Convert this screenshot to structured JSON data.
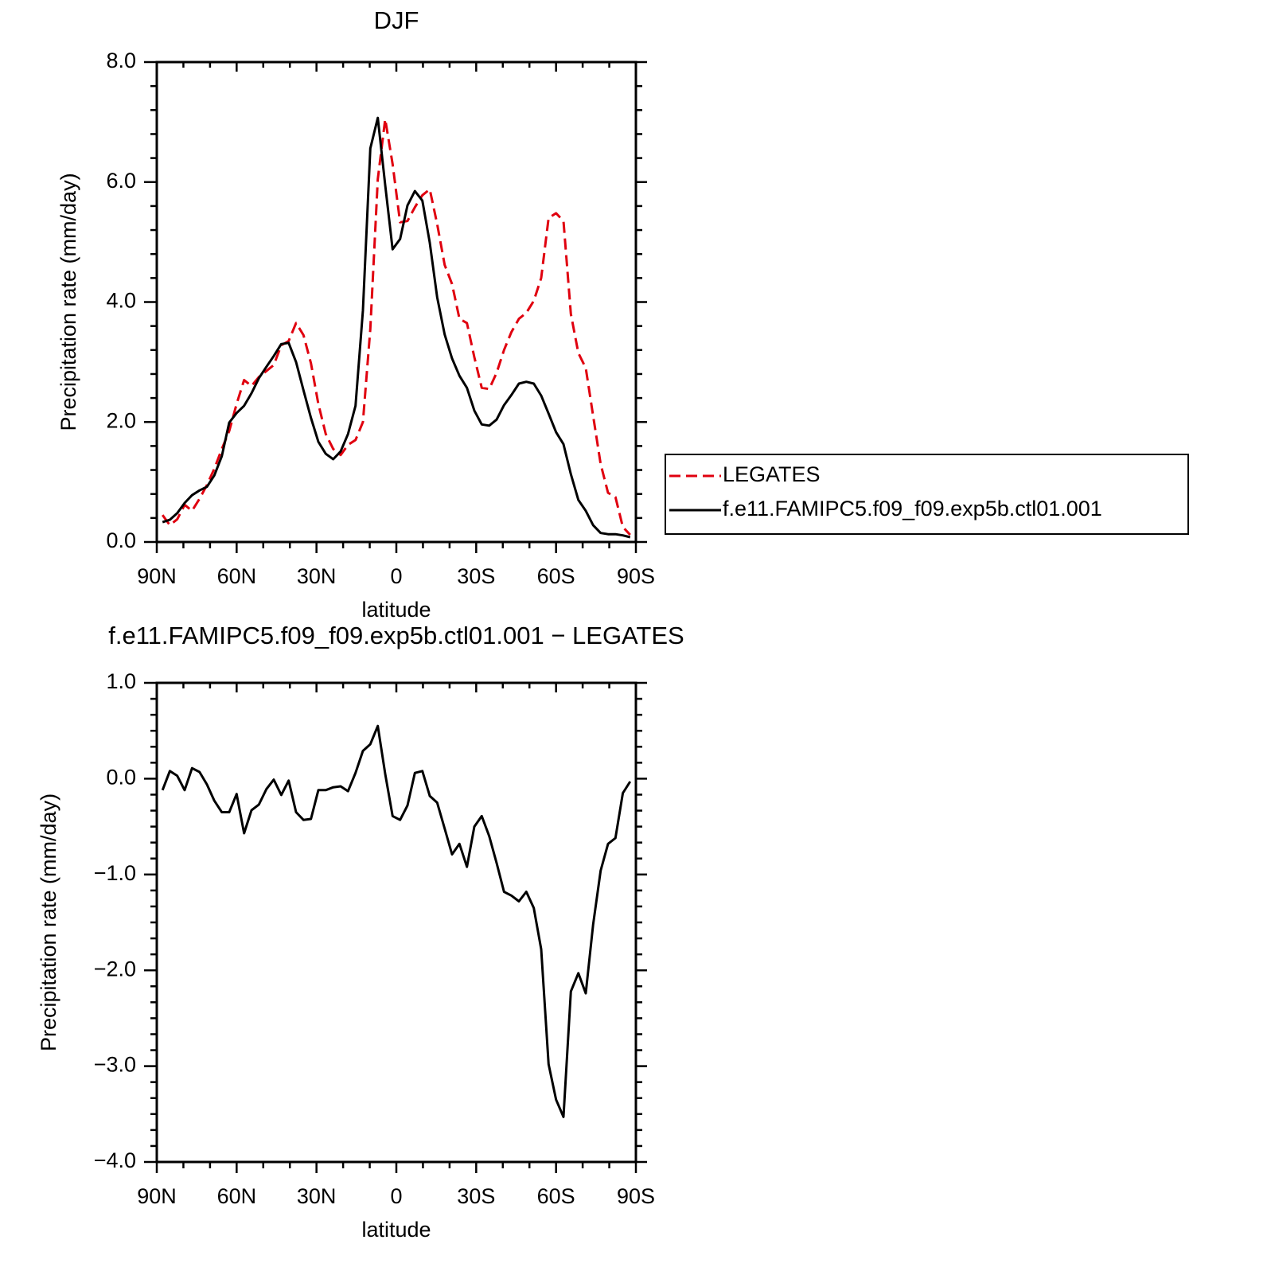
{
  "chart_data": [
    {
      "type": "line",
      "title": "DJF",
      "x_label": "latitude",
      "y_label": "Precipitation rate (mm/day)",
      "x": [
        87.86,
        85.1,
        82.31,
        79.53,
        76.74,
        73.95,
        71.16,
        68.37,
        65.58,
        62.79,
        60.0,
        57.21,
        54.42,
        51.63,
        48.84,
        46.04,
        43.25,
        40.46,
        37.67,
        34.88,
        32.09,
        29.3,
        26.51,
        23.72,
        20.93,
        18.14,
        15.35,
        12.56,
        9.77,
        6.98,
        4.19,
        1.4,
        -1.4,
        -4.19,
        -6.98,
        -9.77,
        -12.56,
        -15.35,
        -18.14,
        -20.93,
        -23.72,
        -26.51,
        -29.3,
        -32.09,
        -34.88,
        -37.67,
        -40.46,
        -43.25,
        -46.04,
        -48.84,
        -51.63,
        -54.42,
        -57.21,
        -60.0,
        -62.79,
        -65.58,
        -68.37,
        -71.16,
        -73.95,
        -76.74,
        -79.53,
        -82.31,
        -85.1,
        -87.86
      ],
      "series": [
        {
          "name": "LEGATES",
          "color": "#e0000f",
          "style": "dashed",
          "values": [
            0.45,
            0.28,
            0.38,
            0.62,
            0.52,
            0.72,
            0.95,
            1.22,
            1.55,
            1.85,
            2.3,
            2.7,
            2.6,
            2.75,
            2.85,
            2.95,
            3.28,
            3.35,
            3.65,
            3.45,
            2.98,
            2.3,
            1.8,
            1.55,
            1.45,
            1.62,
            1.7,
            2.0,
            3.55,
            6.05,
            7.05,
            6.3,
            5.33,
            5.35,
            5.58,
            5.78,
            5.88,
            5.3,
            4.62,
            4.3,
            3.72,
            3.65,
            3.08,
            2.57,
            2.55,
            2.82,
            3.2,
            3.5,
            3.72,
            3.82,
            4.02,
            4.4,
            5.4,
            5.48,
            5.35,
            3.8,
            3.15,
            2.9,
            2.1,
            1.3,
            0.82,
            0.75,
            0.25,
            0.12
          ]
        },
        {
          "name": "f.e11.FAMIPC5.f09_f09.exp5b.ctl01.001",
          "color": "#000000",
          "style": "solid",
          "values": [
            0.33,
            0.37,
            0.48,
            0.65,
            0.78,
            0.86,
            0.92,
            1.11,
            1.43,
            1.99,
            2.15,
            2.27,
            2.48,
            2.73,
            2.92,
            3.1,
            3.3,
            3.32,
            3.0,
            2.53,
            2.07,
            1.67,
            1.47,
            1.38,
            1.51,
            1.8,
            2.27,
            3.86,
            6.56,
            7.07,
            5.95,
            4.88,
            5.05,
            5.61,
            5.85,
            5.69,
            4.99,
            4.08,
            3.46,
            3.06,
            2.77,
            2.57,
            2.19,
            1.96,
            1.94,
            2.04,
            2.28,
            2.45,
            2.64,
            2.67,
            2.64,
            2.44,
            2.14,
            1.83,
            1.63,
            1.13,
            0.7,
            0.52,
            0.28,
            0.15,
            0.13,
            0.13,
            0.11,
            0.08
          ]
        }
      ],
      "xlim": [
        90,
        -90
      ],
      "xticks": [
        {
          "value": 90,
          "label": "90N"
        },
        {
          "value": 60,
          "label": "60N"
        },
        {
          "value": 30,
          "label": "30N"
        },
        0,
        {
          "value": -30,
          "label": "30S"
        },
        {
          "value": -60,
          "label": "60S"
        },
        {
          "value": -90,
          "label": "90S"
        }
      ],
      "ylim": [
        0,
        8
      ],
      "yticks": [
        {
          "value": 0,
          "label": "0.0"
        },
        {
          "value": 2,
          "label": "2.0"
        },
        {
          "value": 4,
          "label": "4.0"
        },
        {
          "value": 6,
          "label": "6.0"
        },
        {
          "value": 8,
          "label": "8.0"
        }
      ],
      "legend": "right"
    },
    {
      "type": "line",
      "title": "f.e11.FAMIPC5.f09_f09.exp5b.ctl01.001 − LEGATES",
      "x_label": "latitude",
      "y_label": "Precipitation rate (mm/day)",
      "x": [
        87.86,
        85.1,
        82.31,
        79.53,
        76.74,
        73.95,
        71.16,
        68.37,
        65.58,
        62.79,
        60.0,
        57.21,
        54.42,
        51.63,
        48.84,
        46.04,
        43.25,
        40.46,
        37.67,
        34.88,
        32.09,
        29.3,
        26.51,
        23.72,
        20.93,
        18.14,
        15.35,
        12.56,
        9.77,
        6.98,
        4.19,
        1.4,
        -1.4,
        -4.19,
        -6.98,
        -9.77,
        -12.56,
        -15.35,
        -18.14,
        -20.93,
        -23.72,
        -26.51,
        -29.3,
        -32.09,
        -34.88,
        -37.67,
        -40.46,
        -43.25,
        -46.04,
        -48.84,
        -51.63,
        -54.42,
        -57.21,
        -60.0,
        -62.79,
        -65.58,
        -68.37,
        -71.16,
        -73.95,
        -76.74,
        -79.53,
        -82.31,
        -85.1,
        -87.86
      ],
      "series": [
        {
          "color": "#000000",
          "style": "solid",
          "values": [
            -0.12,
            0.08,
            0.03,
            -0.12,
            0.11,
            0.07,
            -0.06,
            -0.23,
            -0.35,
            -0.35,
            -0.16,
            -0.57,
            -0.33,
            -0.27,
            -0.11,
            -0.01,
            -0.17,
            -0.02,
            -0.35,
            -0.43,
            -0.42,
            -0.12,
            -0.12,
            -0.09,
            -0.08,
            -0.13,
            0.06,
            0.29,
            0.36,
            0.55,
            0.05,
            -0.39,
            -0.43,
            -0.28,
            0.06,
            0.08,
            -0.18,
            -0.25,
            -0.52,
            -0.79,
            -0.68,
            -0.92,
            -0.5,
            -0.39,
            -0.6,
            -0.88,
            -1.18,
            -1.22,
            -1.28,
            -1.18,
            -1.35,
            -1.78,
            -2.98,
            -3.35,
            -3.53,
            -2.22,
            -2.03,
            -2.24,
            -1.52,
            -0.96,
            -0.68,
            -0.62,
            -0.15,
            -0.03
          ]
        }
      ],
      "xlim": [
        90,
        -90
      ],
      "xticks": [
        {
          "value": 90,
          "label": "90N"
        },
        {
          "value": 60,
          "label": "60N"
        },
        {
          "value": 30,
          "label": "30N"
        },
        0,
        {
          "value": -30,
          "label": "30S"
        },
        {
          "value": -60,
          "label": "60S"
        },
        {
          "value": -90,
          "label": "90S"
        }
      ],
      "ylim": [
        -4,
        1
      ],
      "yticks": [
        {
          "value": -4,
          "label": "−4.0"
        },
        {
          "value": -3,
          "label": "−3.0"
        },
        {
          "value": -2,
          "label": "−2.0"
        },
        {
          "value": -1,
          "label": "−1.0"
        },
        {
          "value": 0,
          "label": "0.0"
        },
        {
          "value": 1,
          "label": "1.0"
        }
      ]
    }
  ]
}
